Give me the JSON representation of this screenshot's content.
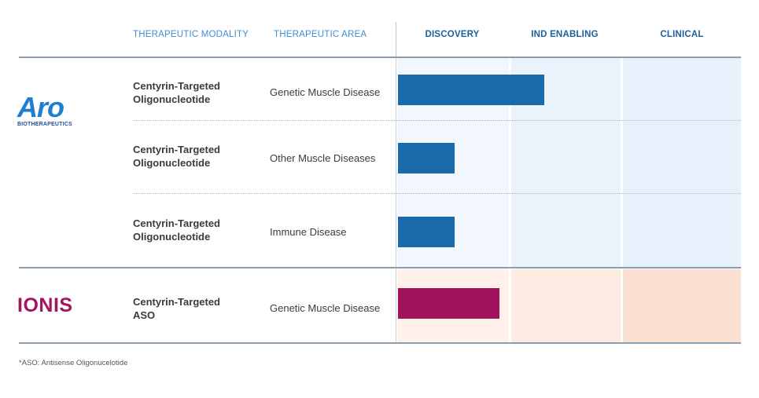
{
  "header": {
    "modality": "THERAPEUTIC MODALITY",
    "area": "THERAPEUTIC AREA"
  },
  "logos": {
    "aro": {
      "word": "Aro",
      "sub": "BIOTHERAPEUTICS",
      "color": "#1e7fd0"
    },
    "ionis": {
      "word": "IONIS",
      "color": "#a3155d"
    }
  },
  "chart_data": {
    "type": "bar",
    "orientation": "horizontal",
    "stages": [
      "DISCOVERY",
      "IND ENABLING",
      "CLINICAL"
    ],
    "groups": [
      {
        "company": "Aro Biotherapeutics",
        "bar_color": "#1a69ab",
        "background_color": "#eef5fc",
        "rows": [
          {
            "modality": [
              "Centyrin-Targeted",
              "Oligonucleotide"
            ],
            "area": "Genetic Muscle Disease",
            "progress": 1.3
          },
          {
            "modality": [
              "Centyrin-Targeted",
              "Oligonucleotide"
            ],
            "area": "Other Muscle Diseases",
            "progress": 0.5
          },
          {
            "modality": [
              "Centyrin-Targeted",
              "Oligonucleotide"
            ],
            "area": "Immune Disease",
            "progress": 0.5
          }
        ]
      },
      {
        "company": "Ionis",
        "bar_color": "#a0125b",
        "background_color": "#fcebe1",
        "rows": [
          {
            "modality": [
              "Centyrin-Targeted",
              "ASO"
            ],
            "area": "Genetic Muscle Disease",
            "progress": 0.9
          }
        ]
      }
    ],
    "xlim": [
      0,
      3
    ]
  },
  "footnote": "*ASO: Antisense Oligonucelotide"
}
